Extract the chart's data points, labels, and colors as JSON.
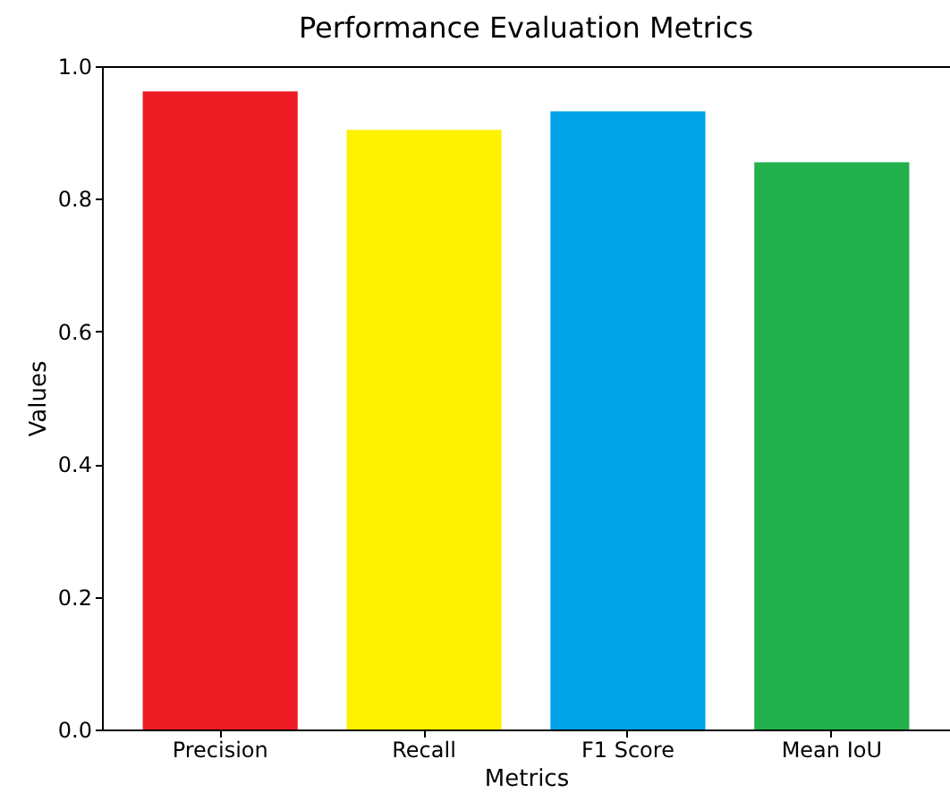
{
  "chart_data": {
    "type": "bar",
    "title": "Performance Evaluation Metrics",
    "xlabel": "Metrics",
    "ylabel": "Values",
    "categories": [
      "Precision",
      "Recall",
      "F1 Score",
      "Mean IoU"
    ],
    "values": [
      0.962,
      0.904,
      0.932,
      0.855
    ],
    "colors": [
      "#ed1c24",
      "#fff200",
      "#00a2e8",
      "#22b14c"
    ],
    "ylim": [
      0,
      1
    ],
    "yticks": [
      {
        "value": 0,
        "label": "0.0"
      },
      {
        "value": 0.2,
        "label": "0.2"
      },
      {
        "value": 0.4,
        "label": "0.4"
      },
      {
        "value": 0.6,
        "label": "0.6"
      },
      {
        "value": 0.8,
        "label": "0.8"
      },
      {
        "value": 1,
        "label": "1.0"
      }
    ],
    "grid": false
  }
}
